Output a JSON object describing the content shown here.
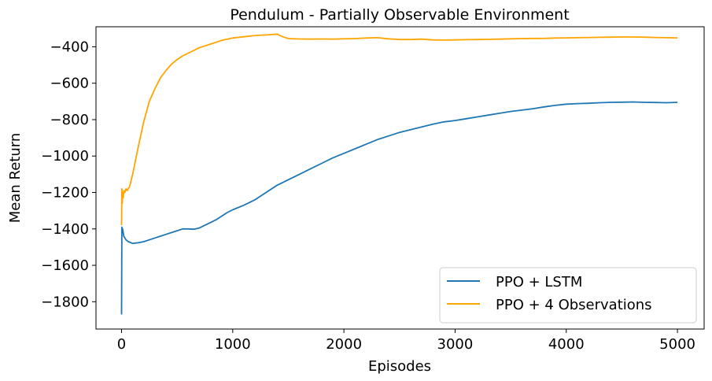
{
  "chart_data": {
    "type": "line",
    "title": "Pendulum - Partially Observable Environment",
    "xlabel": "Episodes",
    "ylabel": "Mean Return",
    "xlim": [
      -230,
      5240
    ],
    "ylim": [
      -1950,
      -290
    ],
    "xticks": [
      0,
      1000,
      2000,
      3000,
      4000,
      5000
    ],
    "xtick_labels": [
      "0",
      "1000",
      "2000",
      "3000",
      "4000",
      "5000"
    ],
    "yticks": [
      -1800,
      -1600,
      -1400,
      -1200,
      -1000,
      -800,
      -600,
      -400
    ],
    "ytick_labels": [
      "−1800",
      "−1600",
      "−1400",
      "−1200",
      "−1000",
      "−800",
      "−600",
      "−400"
    ],
    "grid": false,
    "legend_position": "lower-right",
    "series": [
      {
        "name": "PPO + LSTM",
        "color": "#1f77b4",
        "x": [
          0,
          3,
          6,
          10,
          15,
          20,
          30,
          40,
          50,
          60,
          70,
          80,
          100,
          120,
          150,
          200,
          250,
          300,
          350,
          400,
          450,
          500,
          550,
          600,
          650,
          700,
          750,
          800,
          850,
          900,
          950,
          1000,
          1100,
          1200,
          1300,
          1400,
          1500,
          1600,
          1700,
          1800,
          1900,
          2000,
          2100,
          2200,
          2300,
          2400,
          2500,
          2600,
          2700,
          2800,
          2900,
          3000,
          3100,
          3200,
          3300,
          3400,
          3500,
          3600,
          3700,
          3800,
          3900,
          4000,
          4100,
          4200,
          4300,
          4400,
          4500,
          4600,
          4700,
          4800,
          4900,
          5000
        ],
        "y": [
          -1870,
          -1390,
          -1410,
          -1400,
          -1420,
          -1440,
          -1450,
          -1460,
          -1465,
          -1470,
          -1472,
          -1475,
          -1480,
          -1478,
          -1476,
          -1470,
          -1460,
          -1450,
          -1440,
          -1430,
          -1420,
          -1410,
          -1400,
          -1400,
          -1402,
          -1395,
          -1380,
          -1365,
          -1350,
          -1330,
          -1310,
          -1295,
          -1270,
          -1240,
          -1200,
          -1160,
          -1130,
          -1100,
          -1070,
          -1040,
          -1010,
          -985,
          -960,
          -935,
          -910,
          -890,
          -870,
          -855,
          -840,
          -825,
          -812,
          -805,
          -795,
          -785,
          -775,
          -765,
          -755,
          -748,
          -740,
          -730,
          -722,
          -715,
          -712,
          -710,
          -707,
          -705,
          -704,
          -703,
          -705,
          -706,
          -707,
          -705
        ]
      },
      {
        "name": "PPO + 4 Observations",
        "color": "#ffa500",
        "x": [
          0,
          3,
          6,
          10,
          15,
          20,
          30,
          40,
          50,
          60,
          70,
          80,
          100,
          120,
          150,
          200,
          250,
          300,
          350,
          400,
          450,
          500,
          550,
          600,
          650,
          700,
          750,
          800,
          850,
          900,
          950,
          1000,
          1100,
          1200,
          1300,
          1400,
          1450,
          1500,
          1550,
          1600,
          1700,
          1800,
          1900,
          2000,
          2100,
          2200,
          2300,
          2400,
          2500,
          2600,
          2700,
          2800,
          2900,
          3000,
          3100,
          3200,
          3300,
          3400,
          3500,
          3600,
          3700,
          3800,
          3900,
          4000,
          4100,
          4200,
          4300,
          4400,
          4500,
          4600,
          4700,
          4800,
          4900,
          5000
        ],
        "y": [
          -1380,
          -1180,
          -1260,
          -1200,
          -1230,
          -1190,
          -1200,
          -1180,
          -1190,
          -1180,
          -1170,
          -1150,
          -1100,
          -1040,
          -950,
          -810,
          -700,
          -630,
          -570,
          -530,
          -495,
          -470,
          -450,
          -435,
          -420,
          -405,
          -395,
          -385,
          -375,
          -365,
          -358,
          -352,
          -345,
          -338,
          -335,
          -330,
          -345,
          -355,
          -356,
          -357,
          -358,
          -357,
          -358,
          -356,
          -355,
          -352,
          -350,
          -356,
          -360,
          -360,
          -358,
          -362,
          -363,
          -362,
          -361,
          -360,
          -359,
          -358,
          -356,
          -355,
          -354,
          -354,
          -352,
          -351,
          -350,
          -349,
          -348,
          -347,
          -346,
          -346,
          -347,
          -349,
          -350,
          -351
        ]
      }
    ]
  }
}
